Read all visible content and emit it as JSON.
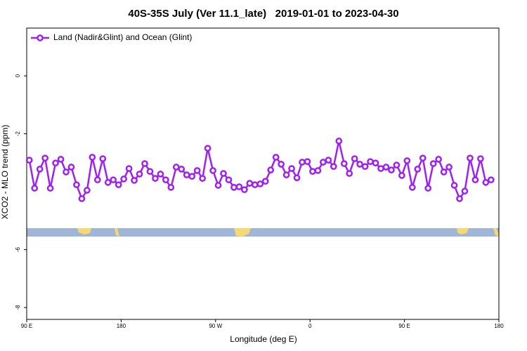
{
  "chart_data": {
    "type": "line",
    "title": "40S-35S July (Ver 11.1_late)   2019-01-01 to 2023-04-30",
    "xlabel": "Longitude (deg E)",
    "ylabel": "XCO2 - MLO trend (ppm)",
    "xlim": [
      90,
      540
    ],
    "ylim": [
      -8.41,
      1.65
    ],
    "xticks": [
      {
        "value": 90,
        "label": "90 E"
      },
      180,
      {
        "value": 270,
        "label": "90 W"
      },
      {
        "value": 360,
        "label": "0"
      },
      {
        "value": 450,
        "label": "90 E"
      },
      {
        "value": 540,
        "label": "180"
      }
    ],
    "yticks": [
      0,
      -2,
      -6,
      -8
    ],
    "legend": "upper left",
    "series": [
      {
        "name": "Land (Nadir&Glint) and Ocean (Glint)",
        "color": "#a020f0",
        "x": [
          92.5,
          97.5,
          102.5,
          107.5,
          112.5,
          117.5,
          122.5,
          127.5,
          132.5,
          137.5,
          142.5,
          147.5,
          152.5,
          157.5,
          162.5,
          167.5,
          172.5,
          177.5,
          182.5,
          187.5,
          192.5,
          197.5,
          202.5,
          207.5,
          212.5,
          217.5,
          222.5,
          227.5,
          232.5,
          237.5,
          242.5,
          247.5,
          252.5,
          257.5,
          262.5,
          267.5,
          272.5,
          277.5,
          282.5,
          287.5,
          292.5,
          297.5,
          302.5,
          307.5,
          312.5,
          317.5,
          322.5,
          327.5,
          332.5,
          337.5,
          342.5,
          347.5,
          352.5,
          357.5,
          362.5,
          367.5,
          372.5,
          377.5,
          382.5,
          387.5,
          392.5,
          397.5,
          402.5,
          407.5,
          412.5,
          417.5,
          422.5,
          427.5,
          432.5,
          437.5,
          442.5,
          447.5,
          452.5,
          457.5,
          462.5,
          467.5,
          472.5,
          477.5,
          482.5,
          487.5,
          492.5,
          497.5,
          502.5,
          507.5,
          512.5,
          517.5,
          522.5,
          527.5,
          532.5
        ],
        "values": [
          -2.91,
          -3.88,
          -3.22,
          -2.84,
          -3.88,
          -3.01,
          -2.88,
          -3.32,
          -3.15,
          -3.76,
          -4.24,
          -3.95,
          -2.81,
          -3.59,
          -2.86,
          -3.68,
          -3.59,
          -3.76,
          -3.56,
          -3.2,
          -3.61,
          -3.39,
          -3.03,
          -3.3,
          -3.54,
          -3.39,
          -3.59,
          -3.85,
          -3.15,
          -3.22,
          -3.42,
          -3.47,
          -3.27,
          -3.54,
          -2.5,
          -3.27,
          -3.78,
          -3.37,
          -3.59,
          -3.85,
          -3.83,
          -3.93,
          -3.71,
          -3.76,
          -3.73,
          -3.64,
          -3.25,
          -2.81,
          -3.05,
          -3.42,
          -3.2,
          -3.52,
          -2.98,
          -2.96,
          -3.3,
          -3.27,
          -2.98,
          -2.91,
          -3.13,
          -2.25,
          -3.03,
          -3.37,
          -2.86,
          -3.05,
          -3.13,
          -2.96,
          -3.01,
          -3.2,
          -3.15,
          -3.25,
          -3.08,
          -3.44,
          -2.93,
          -3.85,
          -3.22,
          -2.84,
          -3.88,
          -3.03,
          -2.88,
          -3.32,
          -3.15,
          -3.78,
          -4.24,
          -3.98,
          -2.84,
          -3.59,
          -2.86,
          -3.68,
          -3.59
        ]
      }
    ]
  }
}
